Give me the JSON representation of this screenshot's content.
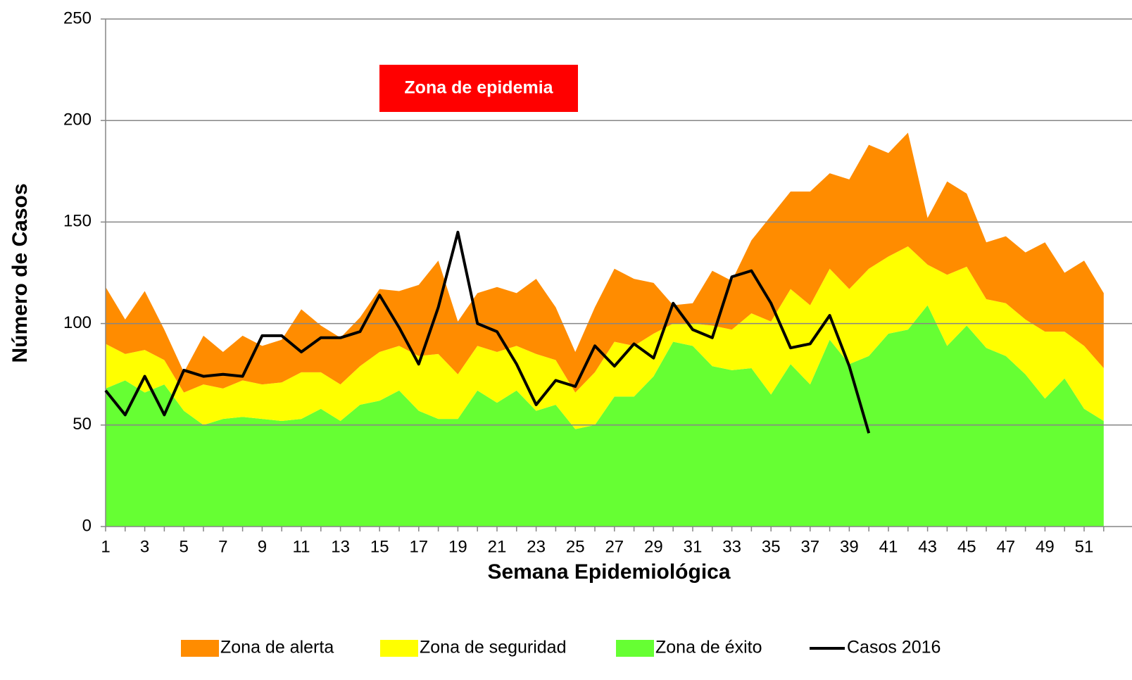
{
  "chart_data": {
    "type": "area",
    "stacked": true,
    "annotation": "Zona de epidemia",
    "annotation_color": "#ff0000",
    "x_label": "Semana Epidemiológica",
    "y_label": "Número de Casos",
    "categories": [
      1,
      null,
      3,
      null,
      5,
      null,
      7,
      null,
      9,
      null,
      11,
      null,
      13,
      null,
      15,
      null,
      17,
      null,
      19,
      null,
      21,
      null,
      23,
      null,
      25,
      null,
      27,
      null,
      29,
      null,
      31,
      null,
      33,
      null,
      35,
      null,
      37,
      null,
      39,
      null,
      41,
      null,
      43,
      null,
      45,
      null,
      47,
      null,
      49,
      null,
      51,
      null
    ],
    "ylim": [
      0,
      250
    ],
    "yticks": [
      0,
      50,
      100,
      150,
      200,
      250
    ],
    "grid": true,
    "series": [
      {
        "name": "Zona de alerta",
        "color": "#ff8c00",
        "values": [
          28,
          17,
          29,
          15,
          10,
          24,
          18,
          22,
          19,
          21,
          31,
          23,
          23,
          24,
          31,
          27,
          35,
          46,
          26,
          26,
          32,
          26,
          37,
          26,
          20,
          32,
          36,
          33,
          25,
          9,
          10,
          27,
          24,
          36,
          52,
          48,
          56,
          47,
          54,
          61,
          51,
          56,
          23,
          46,
          36,
          28,
          33,
          33,
          44,
          29,
          42,
          37
        ]
      },
      {
        "name": "Zona de seguridad",
        "color": "#ffff00",
        "values": [
          22,
          13,
          21,
          12,
          9,
          20,
          15,
          18,
          17,
          19,
          23,
          18,
          18,
          19,
          24,
          22,
          27,
          32,
          22,
          22,
          25,
          22,
          28,
          22,
          18,
          26,
          27,
          25,
          21,
          9,
          11,
          20,
          20,
          27,
          36,
          37,
          39,
          35,
          37,
          43,
          38,
          41,
          20,
          35,
          29,
          24,
          26,
          27,
          33,
          23,
          31,
          26
        ]
      },
      {
        "name": "Zona de éxito",
        "color": "#66ff33",
        "values": [
          68,
          72,
          66,
          70,
          57,
          50,
          53,
          54,
          53,
          52,
          53,
          58,
          52,
          60,
          62,
          67,
          57,
          53,
          53,
          67,
          61,
          67,
          57,
          60,
          48,
          50,
          64,
          64,
          74,
          91,
          89,
          79,
          77,
          78,
          65,
          80,
          70,
          92,
          80,
          84,
          95,
          97,
          109,
          89,
          99,
          88,
          84,
          75,
          63,
          73,
          58,
          52
        ]
      },
      {
        "name": "Casos 2016",
        "type": "line",
        "color": "#000000",
        "values": [
          67,
          55,
          74,
          55,
          77,
          74,
          75,
          74,
          94,
          94,
          86,
          93,
          93,
          96,
          114,
          98,
          80,
          108,
          145,
          100,
          96,
          80,
          60,
          72,
          69,
          89,
          79,
          90,
          83,
          110,
          97,
          93,
          123,
          126,
          110,
          88,
          90,
          104,
          79,
          46,
          null,
          null,
          null,
          null,
          null,
          null,
          null,
          null,
          null,
          null,
          null,
          null
        ]
      }
    ]
  }
}
